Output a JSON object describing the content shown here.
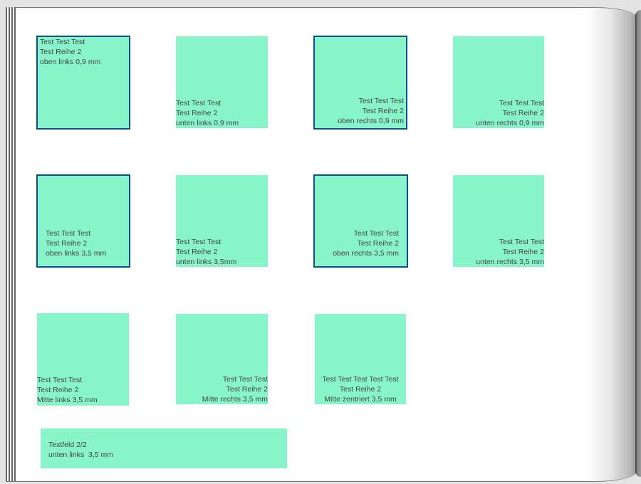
{
  "colors": {
    "box_fill": "#88f4c9",
    "box_border": "#0e4e8c",
    "text": "#444444"
  },
  "boxes": [
    {
      "lines": [
        "Test Test Test",
        "Test Reihe 2",
        "oben links 0,9 mm"
      ]
    },
    {
      "lines": [
        "Test Test Test",
        "Test Reihe 2",
        "unten links 0,9 mm"
      ]
    },
    {
      "lines": [
        "Test Test Test",
        "Test Reihe 2",
        "oben rechts 0,9 mm"
      ]
    },
    {
      "lines": [
        "Test Test Test",
        "Test Reihe 2",
        "unten rechts 0,9 mm"
      ]
    },
    {
      "lines": [
        "Test Test Test",
        "Test Reihe 2",
        "oben links 3,5 mm"
      ]
    },
    {
      "lines": [
        "Test Test Test",
        "Test Reihe 2",
        "unten links 3,5mm"
      ]
    },
    {
      "lines": [
        "Test Test Test",
        "Test Reihe 2",
        "oben rechts 3,5 mm"
      ]
    },
    {
      "lines": [
        "Test Test Test",
        "Test Reihe 2",
        "unten rechts 3,5 mm"
      ]
    },
    {
      "lines": [
        "Test Test Test",
        "Test Reihe 2",
        "Mitte links 3,5 mm"
      ]
    },
    {
      "lines": [
        "Test Test Test",
        "Test Reihe 2",
        "Mitte rechts 3,5 mm"
      ]
    },
    {
      "lines": [
        "Test Test Test Test Test",
        "Test Reihe 2",
        "Mitte zentriert 3,5 mm"
      ]
    },
    {
      "lines": [
        "Textfeld 2/2",
        "unten links  3,5 mm"
      ]
    }
  ]
}
